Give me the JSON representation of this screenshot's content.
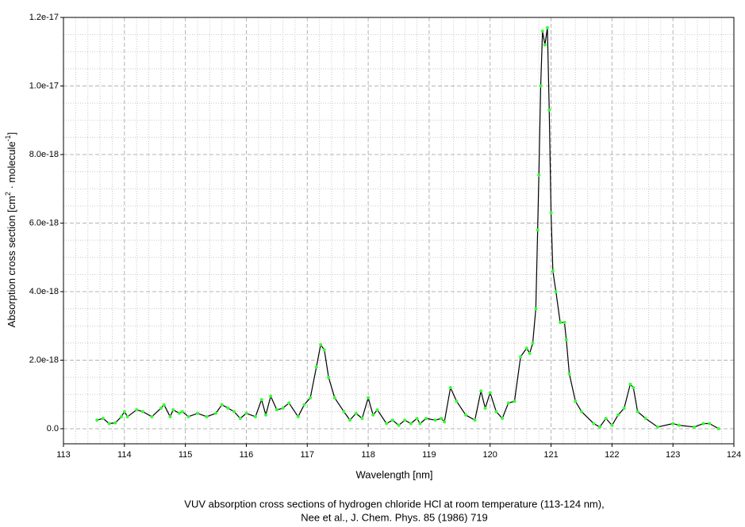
{
  "chart_data": {
    "type": "line",
    "title": [
      "VUV absorption cross sections of hydrogen chloride HCl at room temperature (113-124 nm),",
      "Nee et al., J. Chem. Phys. 85 (1986) 719"
    ],
    "xlabel": "Wavelength [nm]",
    "ylabel": [
      "Absorption cross section [cm",
      "2",
      " · molecule",
      "-1",
      "]"
    ],
    "color": "#000000",
    "marker_color": "#33ff33",
    "grid": true,
    "minor_divisions": {
      "x": 5,
      "y": 4
    },
    "xlim": [
      113,
      124
    ],
    "xticks": [
      113,
      114,
      115,
      116,
      117,
      118,
      119,
      120,
      121,
      122,
      123,
      124
    ],
    "ylim": [
      -4.4e-19,
      1.2e-17
    ],
    "yticks": [
      {
        "value": 0,
        "label": "0.0"
      },
      {
        "value": 2e-18,
        "label": "2.0e-18"
      },
      {
        "value": 4e-18,
        "label": "4.0e-18"
      },
      {
        "value": 6e-18,
        "label": "6.0e-18"
      },
      {
        "value": 8e-18,
        "label": "8.0e-18"
      },
      {
        "value": 1e-17,
        "label": "1.0e-17"
      },
      {
        "value": 1.2e-17,
        "label": "1.2e-17"
      }
    ],
    "x": [
      113.55,
      113.65,
      113.75,
      113.85,
      113.95,
      114.0,
      114.05,
      114.2,
      114.3,
      114.45,
      114.6,
      114.65,
      114.75,
      114.8,
      114.9,
      114.95,
      115.05,
      115.2,
      115.35,
      115.5,
      115.6,
      115.7,
      115.8,
      115.9,
      116.0,
      116.15,
      116.25,
      116.32,
      116.4,
      116.5,
      116.6,
      116.7,
      116.85,
      116.95,
      117.05,
      117.15,
      117.22,
      117.28,
      117.35,
      117.45,
      117.6,
      117.7,
      117.8,
      117.9,
      118.0,
      118.08,
      118.15,
      118.3,
      118.4,
      118.5,
      118.6,
      118.7,
      118.8,
      118.85,
      118.95,
      119.1,
      119.2,
      119.25,
      119.35,
      119.45,
      119.6,
      119.75,
      119.85,
      119.92,
      120.0,
      120.1,
      120.2,
      120.3,
      120.4,
      120.5,
      120.6,
      120.65,
      120.7,
      120.75,
      120.78,
      120.8,
      120.83,
      120.86,
      120.9,
      120.94,
      120.97,
      121.0,
      121.03,
      121.08,
      121.15,
      121.22,
      121.25,
      121.3,
      121.4,
      121.5,
      121.7,
      121.8,
      121.9,
      122.0,
      122.1,
      122.2,
      122.3,
      122.35,
      122.42,
      122.55,
      122.75,
      123.0,
      123.1,
      123.35,
      123.5,
      123.6,
      123.75
    ],
    "values": [
      2.5e-19,
      3e-19,
      1.5e-19,
      1.7e-19,
      3.5e-19,
      5e-19,
      3.5e-19,
      5.5e-19,
      5e-19,
      3.5e-19,
      6e-19,
      7e-19,
      3.5e-19,
      5.5e-19,
      4.5e-19,
      5e-19,
      3.5e-19,
      4.5e-19,
      3.5e-19,
      4.5e-19,
      7e-19,
      6e-19,
      5e-19,
      3e-19,
      4.5e-19,
      3.5e-19,
      8.5e-19,
      4e-19,
      9.5e-19,
      5.5e-19,
      6e-19,
      7.5e-19,
      3.5e-19,
      7e-19,
      9e-19,
      1.8e-18,
      2.45e-18,
      2.3e-18,
      1.5e-18,
      9e-19,
      5e-19,
      2.5e-19,
      4.5e-19,
      3e-19,
      9e-19,
      4e-19,
      5.5e-19,
      1.5e-19,
      2.5e-19,
      1e-19,
      2.5e-19,
      1.5e-19,
      3e-19,
      1.5e-19,
      3e-19,
      2.5e-19,
      3e-19,
      2e-19,
      1.2e-18,
      8e-19,
      4e-19,
      2.5e-19,
      1.1e-18,
      6e-19,
      1.05e-18,
      5e-19,
      3e-19,
      7.5e-19,
      8e-19,
      2.1e-18,
      2.35e-18,
      2.2e-18,
      2.5e-18,
      3.5e-18,
      5.8e-18,
      7.4e-18,
      1e-17,
      1.16e-17,
      1.12e-17,
      1.17e-17,
      9.3e-18,
      6.3e-18,
      4.6e-18,
      4e-18,
      3.1e-18,
      3.1e-18,
      2.6e-18,
      1.6e-18,
      8e-19,
      5e-19,
      1.5e-19,
      5e-20,
      3e-19,
      1e-19,
      4e-19,
      6e-19,
      1.3e-18,
      1.2e-18,
      5e-19,
      3e-19,
      5e-20,
      1.5e-19,
      1e-19,
      5e-20,
      1.5e-19,
      1.5e-19,
      0
    ]
  }
}
